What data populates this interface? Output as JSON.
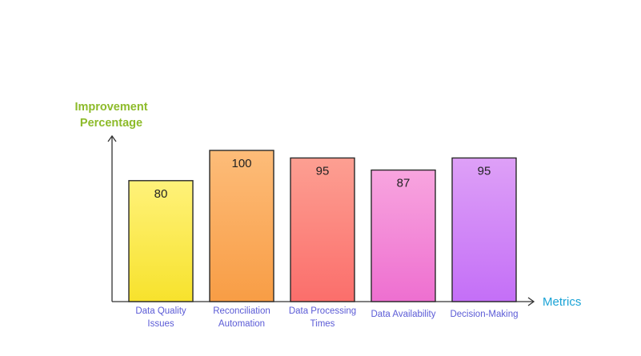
{
  "chart_data": {
    "type": "bar",
    "title": "",
    "ylabel_lines": [
      "Improvement",
      "Percentage"
    ],
    "xlabel": "Metrics",
    "categories": [
      [
        "Data Quality",
        "Issues"
      ],
      [
        "Reconciliation",
        "Automation"
      ],
      [
        "Data Processing",
        "Times"
      ],
      [
        "Data Availability"
      ],
      [
        "Decision-Making"
      ]
    ],
    "values": [
      80,
      100,
      95,
      87,
      95
    ],
    "data_labels": [
      "80",
      "100",
      "95",
      "87",
      "95"
    ],
    "ylim": [
      0,
      100
    ],
    "grid": false,
    "legend": "none",
    "colors": {
      "ylabel": "#8dbb2a",
      "xlabel": "#1aa3d6",
      "tick_label": "#5b5bd6",
      "axis": "#333333",
      "bar_stroke": "#2a2a2a",
      "value_label": "#222222",
      "bar_gradients": [
        [
          "#fff27a",
          "#f7e22c"
        ],
        [
          "#fdbc79",
          "#f89d45"
        ],
        [
          "#fd9f92",
          "#fb6e6b"
        ],
        [
          "#f8a5df",
          "#ee6fd0"
        ],
        [
          "#dea0f7",
          "#c46ff7"
        ]
      ]
    }
  }
}
